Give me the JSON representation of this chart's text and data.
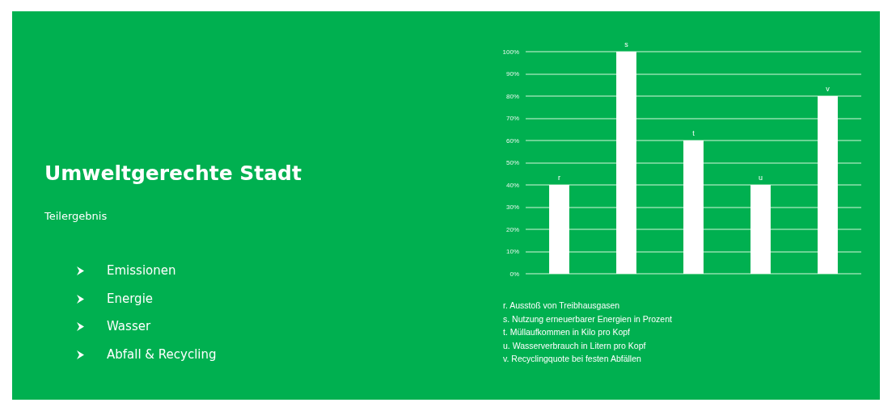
{
  "chart_data": {
    "type": "bar",
    "title": "Umweltgerechte Stadt",
    "subtitle": "Teilergebnis",
    "categories": [
      "r",
      "s",
      "t",
      "u",
      "v"
    ],
    "values": [
      40,
      100,
      60,
      40,
      80
    ],
    "color": "#ffffff",
    "ylim": [
      0,
      100
    ],
    "yticks": [
      {
        "value": 0,
        "label": "0%"
      },
      {
        "value": 10,
        "label": "10%"
      },
      {
        "value": 20,
        "label": "20%"
      },
      {
        "value": 30,
        "label": "30%"
      },
      {
        "value": 40,
        "label": "40%"
      },
      {
        "value": 50,
        "label": "50%"
      },
      {
        "value": 60,
        "label": "60%"
      },
      {
        "value": 70,
        "label": "70%"
      },
      {
        "value": 80,
        "label": "80%"
      },
      {
        "value": 90,
        "label": "90%"
      },
      {
        "value": 100,
        "label": "100%"
      }
    ],
    "grid": "y",
    "annotations": [
      "Emissionen",
      "Energie",
      "Wasser",
      "Abfall & Recycling",
      "r. Ausstoß von Treibhausgasen",
      "s. Nutzung erneuerbarer Energien in Prozent",
      "t. Müllaufkommen in Kilo pro Kopf",
      "u. Wasserverbrauch in Litern pro Kopf",
      "v. Recyclingquote bei festen Abfällen"
    ]
  }
}
